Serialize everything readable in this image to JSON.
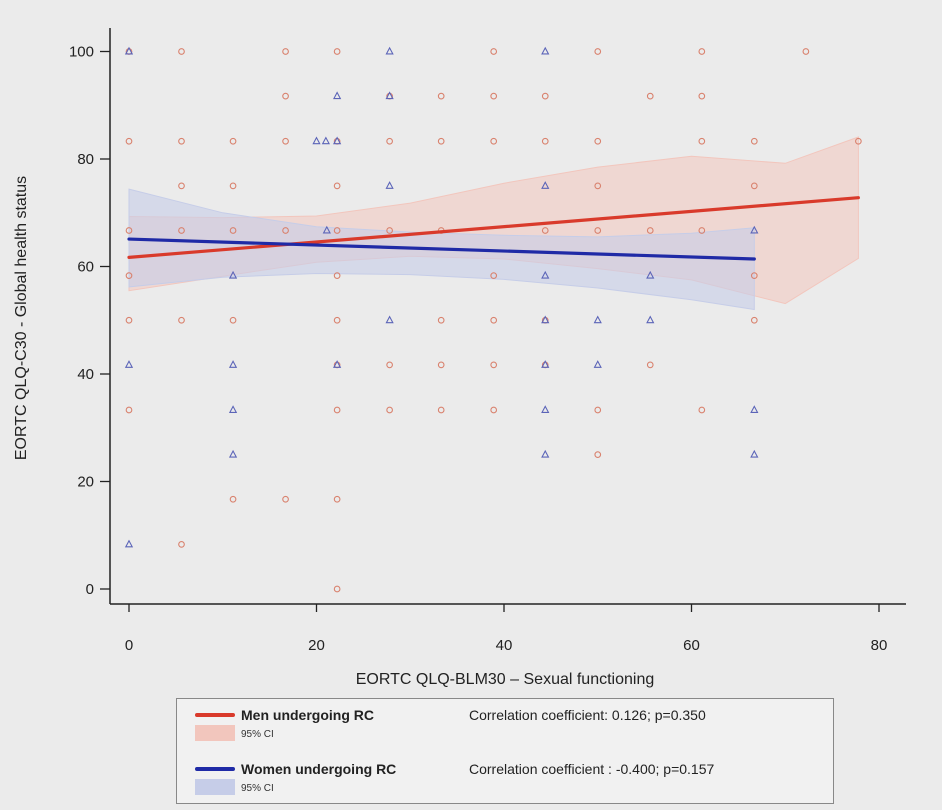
{
  "chart_data": {
    "type": "scatter",
    "xlabel": "EORTC QLQ-BLM30 – Sexual functioning",
    "ylabel": "EORTC QLQ-C30 - Global health status",
    "xlim": [
      0,
      80
    ],
    "ylim": [
      0,
      100
    ],
    "xticks": [
      "0",
      "20",
      "40",
      "60",
      "80"
    ],
    "yticks": [
      "0",
      "20",
      "40",
      "60",
      "80",
      "100"
    ],
    "grid": false,
    "legend_position": "bottom",
    "series": [
      {
        "name": "Men undergoing RC",
        "marker": "circle",
        "color": "#d9826e",
        "line_color": "#d93a2b",
        "ci_color": "#f2c6bd",
        "ci_label": "95% CI",
        "correlation": "Correlation coefficient: 0.126; p=0.350",
        "fit": {
          "x0": 0,
          "y0": 61.7,
          "x1": 77.8,
          "y1": 72.8
        },
        "ci": [
          [
            0,
            55.5,
            69.3
          ],
          [
            10,
            58.2,
            69.1
          ],
          [
            20,
            60.8,
            69.4
          ],
          [
            30,
            61.9,
            71.8
          ],
          [
            40,
            61.4,
            75.5
          ],
          [
            50,
            59.6,
            78.5
          ],
          [
            60,
            57.5,
            80.5
          ],
          [
            70,
            53.1,
            79.2
          ],
          [
            77.8,
            61.5,
            84.1
          ]
        ],
        "points": [
          [
            0,
            100
          ],
          [
            5.6,
            100
          ],
          [
            16.7,
            100
          ],
          [
            22.2,
            100
          ],
          [
            38.9,
            100
          ],
          [
            50,
            100
          ],
          [
            61.1,
            100
          ],
          [
            72.2,
            100
          ],
          [
            16.7,
            91.7
          ],
          [
            27.8,
            91.7
          ],
          [
            33.3,
            91.7
          ],
          [
            38.9,
            91.7
          ],
          [
            44.4,
            91.7
          ],
          [
            55.6,
            91.7
          ],
          [
            61.1,
            91.7
          ],
          [
            0,
            83.3
          ],
          [
            5.6,
            83.3
          ],
          [
            11.1,
            83.3
          ],
          [
            16.7,
            83.3
          ],
          [
            22.2,
            83.3
          ],
          [
            27.8,
            83.3
          ],
          [
            33.3,
            83.3
          ],
          [
            38.9,
            83.3
          ],
          [
            44.4,
            83.3
          ],
          [
            50,
            83.3
          ],
          [
            61.1,
            83.3
          ],
          [
            66.7,
            83.3
          ],
          [
            77.8,
            83.3
          ],
          [
            5.6,
            75
          ],
          [
            11.1,
            75
          ],
          [
            22.2,
            75
          ],
          [
            50,
            75
          ],
          [
            66.7,
            75
          ],
          [
            0,
            66.7
          ],
          [
            5.6,
            66.7
          ],
          [
            11.1,
            66.7
          ],
          [
            16.7,
            66.7
          ],
          [
            22.2,
            66.7
          ],
          [
            27.8,
            66.7
          ],
          [
            33.3,
            66.7
          ],
          [
            44.4,
            66.7
          ],
          [
            50,
            66.7
          ],
          [
            55.6,
            66.7
          ],
          [
            61.1,
            66.7
          ],
          [
            0,
            58.3
          ],
          [
            22.2,
            58.3
          ],
          [
            38.9,
            58.3
          ],
          [
            66.7,
            58.3
          ],
          [
            0,
            50
          ],
          [
            5.6,
            50
          ],
          [
            11.1,
            50
          ],
          [
            22.2,
            50
          ],
          [
            33.3,
            50
          ],
          [
            38.9,
            50
          ],
          [
            44.4,
            50
          ],
          [
            66.7,
            50
          ],
          [
            22.2,
            41.7
          ],
          [
            27.8,
            41.7
          ],
          [
            33.3,
            41.7
          ],
          [
            38.9,
            41.7
          ],
          [
            44.4,
            41.7
          ],
          [
            55.6,
            41.7
          ],
          [
            0,
            33.3
          ],
          [
            22.2,
            33.3
          ],
          [
            27.8,
            33.3
          ],
          [
            33.3,
            33.3
          ],
          [
            38.9,
            33.3
          ],
          [
            50,
            33.3
          ],
          [
            61.1,
            33.3
          ],
          [
            50,
            25
          ],
          [
            11.1,
            16.7
          ],
          [
            16.7,
            16.7
          ],
          [
            22.2,
            16.7
          ],
          [
            5.6,
            8.3
          ],
          [
            22.2,
            0
          ]
        ]
      },
      {
        "name": "Women undergoing RC",
        "marker": "triangle",
        "color": "#5b64b8",
        "line_color": "#1f2aa6",
        "ci_color": "#c6cde8",
        "ci_label": "95% CI",
        "correlation": "Correlation coefficient : -0.400; p=0.157",
        "fit": {
          "x0": 0,
          "y0": 65.1,
          "x1": 66.7,
          "y1": 61.4
        },
        "ci": [
          [
            0,
            56.2,
            74.4
          ],
          [
            10,
            58.0,
            70.0
          ],
          [
            20,
            58.7,
            67.4
          ],
          [
            30,
            58.5,
            66.4
          ],
          [
            40,
            57.6,
            65.8
          ],
          [
            50,
            56.0,
            65.5
          ],
          [
            60,
            53.8,
            66.2
          ],
          [
            66.7,
            52.0,
            67.2
          ]
        ],
        "points": [
          [
            0,
            100
          ],
          [
            27.8,
            100
          ],
          [
            44.4,
            100
          ],
          [
            22.2,
            91.7
          ],
          [
            27.8,
            91.7
          ],
          [
            20,
            83.3
          ],
          [
            21,
            83.3
          ],
          [
            22.2,
            83.3
          ],
          [
            27.8,
            75
          ],
          [
            44.4,
            75
          ],
          [
            21.1,
            66.7
          ],
          [
            66.7,
            66.7
          ],
          [
            11.1,
            58.3
          ],
          [
            44.4,
            58.3
          ],
          [
            55.6,
            58.3
          ],
          [
            27.8,
            50
          ],
          [
            44.4,
            50
          ],
          [
            50,
            50
          ],
          [
            55.6,
            50
          ],
          [
            0,
            41.7
          ],
          [
            11.1,
            41.7
          ],
          [
            22.2,
            41.7
          ],
          [
            44.4,
            41.7
          ],
          [
            50,
            41.7
          ],
          [
            11.1,
            33.3
          ],
          [
            44.4,
            33.3
          ],
          [
            66.7,
            33.3
          ],
          [
            11.1,
            25
          ],
          [
            44.4,
            25
          ],
          [
            66.7,
            25
          ],
          [
            0,
            8.3
          ]
        ]
      }
    ]
  }
}
